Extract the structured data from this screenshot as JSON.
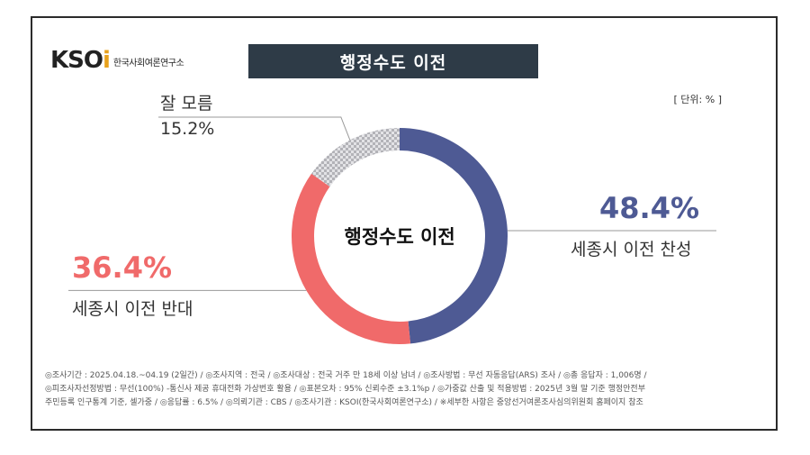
{
  "brand": {
    "logo_text_main": "KSO",
    "logo_text_accent": "i",
    "logo_subtitle": "한국사회여론연구소"
  },
  "header": {
    "title": "행정수도 이전"
  },
  "unit_label": "[ 단위: % ]",
  "chart_data": {
    "type": "pie",
    "style": "donut",
    "title": "행정수도 이전",
    "center_label": "행정수도 이전",
    "slices": [
      {
        "label": "세종시 이전 찬성",
        "value": 48.4,
        "value_label": "48.4%",
        "color": "#4e5a94"
      },
      {
        "label": "세종시 이전 반대",
        "value": 36.4,
        "value_label": "36.4%",
        "color": "#f06a6a"
      },
      {
        "label": "잘 모름",
        "value": 15.2,
        "value_label": "15.2%",
        "color": "#c9c9cc",
        "pattern": "checker"
      }
    ]
  },
  "footnote": {
    "lines": [
      "◎조사기간 : 2025.04.18.~04.19 (2일간) / ◎조사지역 : 전국 / ◎조사대상 : 전국 거주 만 18세 이상 남녀 / ◎조사방법 : 무선 자동응답(ARS) 조사 / ◎총 응답자 : 1,006명 /",
      "◎피조사자선정방법 : 무선(100%) -통신사 제공 휴대전화 가상번호 활용 / ◎표본오차 : 95% 신뢰수준 ±3.1%p / ◎가중값 산출 및 적용방법 : 2025년 3월 말 기준 행정안전부",
      "주민등록 인구통계 기준, 셀가중 / ◎응답률 : 6.5% / ◎의뢰기관 : CBS / ◎조사기관 : KSOI(한국사회여론연구소) / ※세부한 사항은 중앙선거여론조사심의위원회 홈페이지 참조"
    ]
  }
}
